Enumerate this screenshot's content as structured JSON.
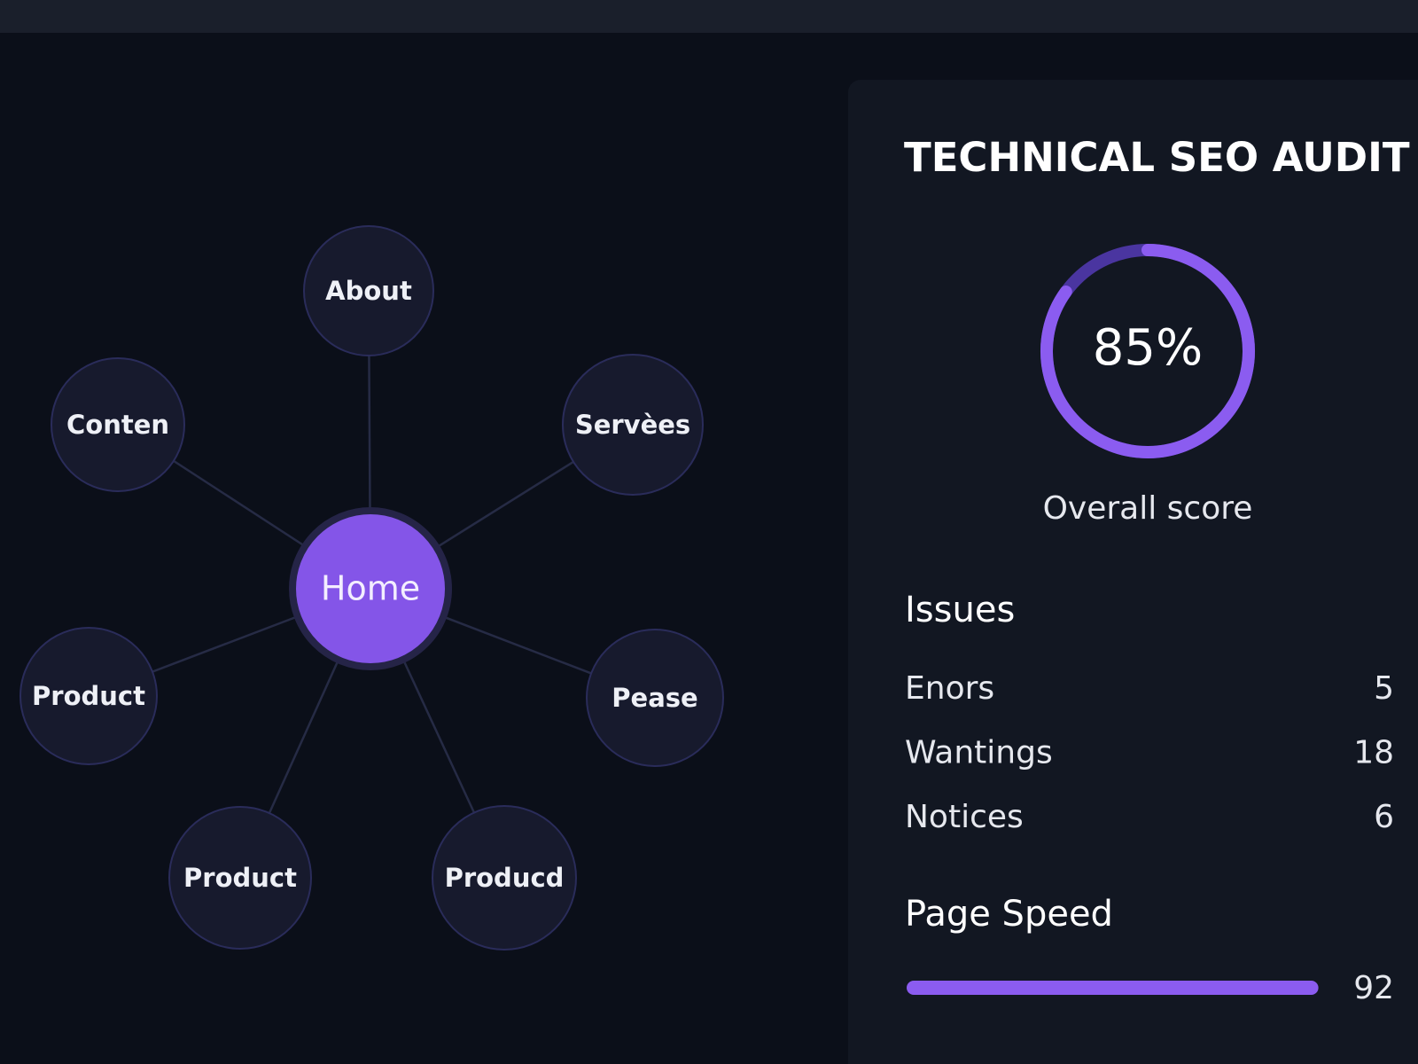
{
  "site_map": {
    "nodes": [
      {
        "label": "Home"
      },
      {
        "label": "About"
      },
      {
        "label": "Conten"
      },
      {
        "label": "Servèes"
      },
      {
        "label": "Product"
      },
      {
        "label": "Pease"
      },
      {
        "label": "Product"
      },
      {
        "label": "Producd"
      }
    ]
  },
  "audit": {
    "title": "TECHNICAL SEO AUDIT",
    "score": {
      "value": 85,
      "label": "85%"
    },
    "score_caption": "Overall score",
    "issues_heading": "Issues",
    "issues": [
      {
        "name": "Enors",
        "count": 5
      },
      {
        "name": "Wantings",
        "count": 18
      },
      {
        "name": "Notices",
        "count": 6
      }
    ],
    "page_speed_heading": "Page Speed",
    "page_speed": 92
  }
}
